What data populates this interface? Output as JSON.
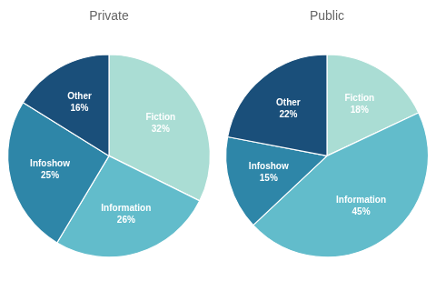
{
  "chart_data": [
    {
      "type": "pie",
      "title": "Private",
      "categories": [
        "Fiction",
        "Information",
        "Infoshow",
        "Other"
      ],
      "values": [
        32,
        26,
        25,
        16
      ],
      "value_labels": [
        "32%",
        "26%",
        "25%",
        "16%"
      ],
      "colors": [
        "#aaddd4",
        "#62bccb",
        "#2e86a8",
        "#1a4f7a"
      ],
      "data_labels": true
    },
    {
      "type": "pie",
      "title": "Public",
      "categories": [
        "Fiction",
        "Information",
        "Infoshow",
        "Other"
      ],
      "values": [
        18,
        45,
        15,
        22
      ],
      "value_labels": [
        "18%",
        "45%",
        "15%",
        "22%"
      ],
      "colors": [
        "#aaddd4",
        "#62bccb",
        "#2e86a8",
        "#1a4f7a"
      ],
      "data_labels": true
    }
  ]
}
